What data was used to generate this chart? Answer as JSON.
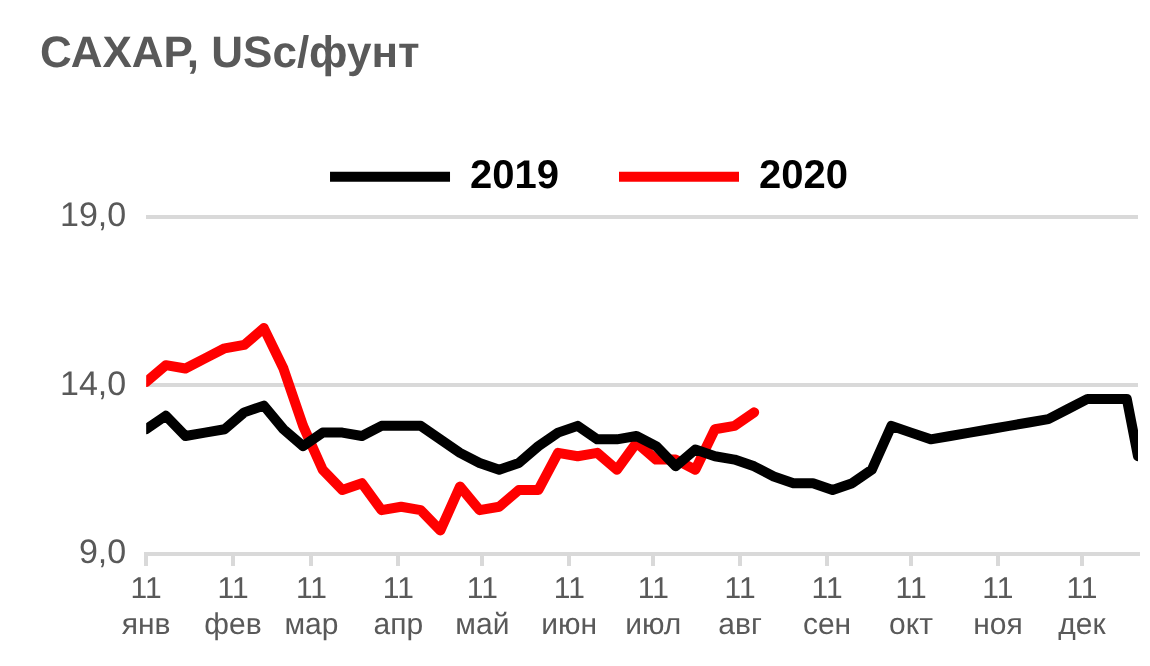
{
  "chart_data": {
    "type": "line",
    "title": "САХАР, USc/фунт",
    "x": [
      "--01-11",
      "--01-18",
      "--01-25",
      "--02-01",
      "--02-08",
      "--02-15",
      "--02-22",
      "--03-01",
      "--03-08",
      "--03-15",
      "--03-22",
      "--03-29",
      "--04-05",
      "--04-12",
      "--04-19",
      "--04-26",
      "--05-03",
      "--05-10",
      "--05-17",
      "--05-24",
      "--05-31",
      "--06-07",
      "--06-14",
      "--06-21",
      "--06-28",
      "--07-05",
      "--07-12",
      "--07-19",
      "--07-26",
      "--08-02",
      "--08-09",
      "--08-16",
      "--08-23",
      "--08-30",
      "--09-06",
      "--09-13",
      "--09-20",
      "--09-27",
      "--10-04",
      "--10-11",
      "--10-18",
      "--10-25",
      "--11-01",
      "--11-08",
      "--11-15",
      "--11-22",
      "--11-29",
      "--12-06",
      "--12-13",
      "--12-20",
      "--12-27",
      "--12-31"
    ],
    "series": [
      {
        "name": "2019",
        "color": "#000000",
        "values": [
          12.7,
          13.1,
          12.5,
          12.6,
          12.7,
          13.2,
          13.4,
          12.7,
          12.2,
          12.6,
          12.6,
          12.5,
          12.8,
          12.8,
          12.8,
          12.4,
          12.0,
          11.7,
          11.5,
          11.7,
          12.2,
          12.6,
          12.8,
          12.4,
          12.4,
          12.5,
          12.2,
          11.6,
          12.1,
          11.9,
          11.8,
          11.6,
          11.3,
          11.1,
          11.1,
          10.9,
          11.1,
          11.5,
          12.8,
          12.6,
          12.4,
          12.5,
          12.6,
          12.7,
          12.8,
          12.9,
          13.0,
          13.3,
          13.6,
          13.6,
          13.6,
          11.9
        ]
      },
      {
        "name": "2020",
        "color": "#ff0000",
        "values": [
          14.1,
          14.6,
          14.5,
          14.8,
          15.1,
          15.2,
          15.7,
          14.5,
          12.8,
          11.5,
          10.9,
          11.1,
          10.3,
          10.4,
          10.3,
          9.7,
          11.0,
          10.3,
          10.4,
          10.9,
          10.9,
          12.0,
          11.9,
          12.0,
          11.5,
          12.3,
          11.8,
          11.8,
          11.5,
          12.7,
          12.8,
          13.2,
          null,
          null,
          null,
          null,
          null,
          null,
          null,
          null,
          null,
          null,
          null,
          null,
          null,
          null,
          null,
          null,
          null,
          null,
          null,
          null
        ]
      }
    ],
    "xlim": [
      "--01-11",
      "--12-31"
    ],
    "xticks": [
      {
        "value": "--01-11",
        "label": "11 янв"
      },
      {
        "value": "--02-11",
        "label": "11 фев"
      },
      {
        "value": "--03-11",
        "label": "11 мар"
      },
      {
        "value": "--04-11",
        "label": "11 апр"
      },
      {
        "value": "--05-11",
        "label": "11 май"
      },
      {
        "value": "--06-11",
        "label": "11 июн"
      },
      {
        "value": "--07-11",
        "label": "11 июл"
      },
      {
        "value": "--08-11",
        "label": "11 авг"
      },
      {
        "value": "--09-11",
        "label": "11 сен"
      },
      {
        "value": "--10-11",
        "label": "11 окт"
      },
      {
        "value": "--11-11",
        "label": "11 ноя"
      },
      {
        "value": "--12-11",
        "label": "11 дек"
      }
    ],
    "ylim": [
      9,
      19
    ],
    "yticks": [
      {
        "value": 9,
        "label": "9,0"
      },
      {
        "value": 14,
        "label": "14,0"
      },
      {
        "value": 19,
        "label": "19,0"
      }
    ],
    "grid": "y",
    "legend": "top",
    "marker": "none",
    "line_style": "solid"
  }
}
